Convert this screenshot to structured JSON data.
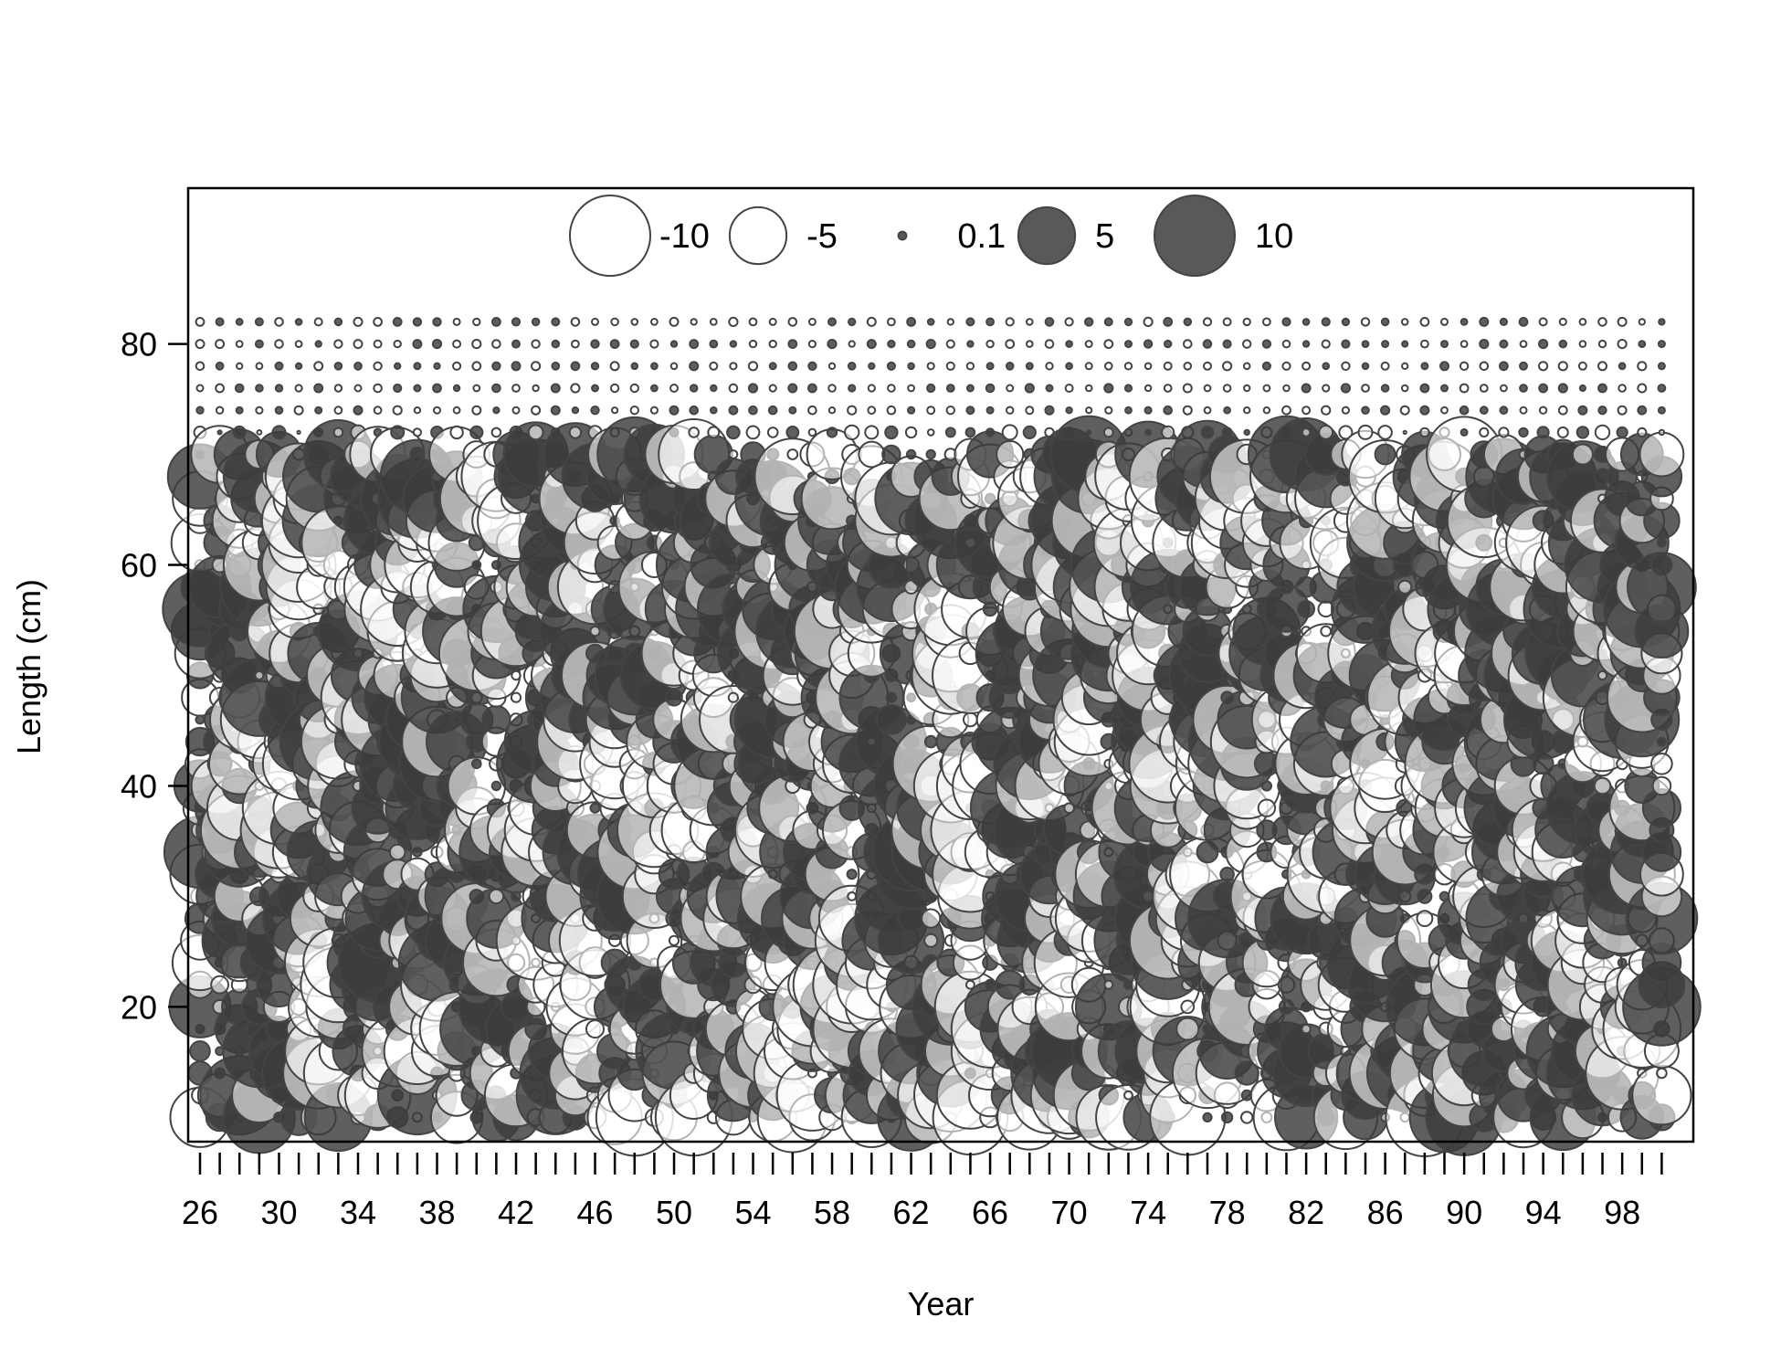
{
  "chart_data": {
    "type": "bubble",
    "title": "",
    "xlabel": "Year",
    "ylabel": "Length (cm)",
    "xlim": [
      1925.4,
      2001.6
    ],
    "ylim": [
      7.8,
      94.1
    ],
    "x_ticks_minor": {
      "start": 1926,
      "end": 2000,
      "step": 1
    },
    "x_tick_labels": [
      "26",
      "30",
      "34",
      "38",
      "42",
      "46",
      "50",
      "54",
      "58",
      "62",
      "66",
      "70",
      "74",
      "78",
      "82",
      "86",
      "90",
      "94",
      "98"
    ],
    "x_tick_label_years": [
      1926,
      1930,
      1934,
      1938,
      1942,
      1946,
      1950,
      1954,
      1958,
      1962,
      1966,
      1970,
      1974,
      1978,
      1982,
      1986,
      1990,
      1994,
      1998
    ],
    "y_ticks": [
      20,
      40,
      60,
      80
    ],
    "y_tick_labels": [
      "20",
      "40",
      "60",
      "80"
    ],
    "grid": false,
    "legend": {
      "placement": "top-center",
      "entries": [
        {
          "label": "-10",
          "value": -10
        },
        {
          "label": "-5",
          "value": -5
        },
        {
          "label": "0.1",
          "value": 0.1
        },
        {
          "label": "5",
          "value": 5
        },
        {
          "label": "10",
          "value": 10
        }
      ]
    },
    "colors": {
      "negative_fill": "#ffffff",
      "positive_fill": "#3c3c3c",
      "outline": "#444444"
    },
    "grid_years": {
      "start": 1926,
      "end": 2000,
      "step": 1
    },
    "grid_lengths": {
      "start": 10,
      "end": 82,
      "step": 2
    },
    "residual_magnitude_max": 10,
    "notes_on_values": "Residual values per year and length class; negative values drawn as open circles, positive as filled circles. Values beyond 72 cm are near zero."
  }
}
